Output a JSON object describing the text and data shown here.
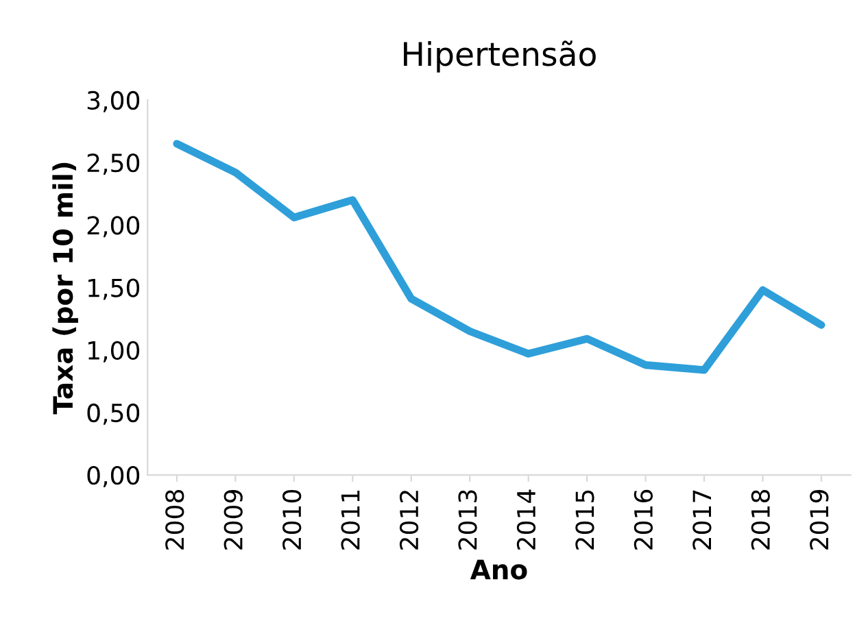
{
  "chart_data": {
    "type": "line",
    "title": "Hipertensão",
    "xlabel": "Ano",
    "ylabel": "Taxa (por 10 mil)",
    "categories": [
      "2008",
      "2009",
      "2010",
      "2011",
      "2012",
      "2013",
      "2014",
      "2015",
      "2016",
      "2017",
      "2018",
      "2019"
    ],
    "series": [
      {
        "color": "#2e9fd9",
        "values": [
          2.65,
          2.42,
          2.06,
          2.2,
          1.41,
          1.15,
          0.97,
          1.09,
          0.88,
          0.84,
          1.48,
          1.2
        ]
      }
    ],
    "ylim": [
      0,
      3
    ],
    "yticks": [
      {
        "value": 0,
        "label": "0,00"
      },
      {
        "value": 0.5,
        "label": "0,50"
      },
      {
        "value": 1,
        "label": "1,00"
      },
      {
        "value": 1.5,
        "label": "1,50"
      },
      {
        "value": 2,
        "label": "2,00"
      },
      {
        "value": 2.5,
        "label": "2,50"
      },
      {
        "value": 3,
        "label": "3,00"
      }
    ],
    "grid": false,
    "marker": "none",
    "line_style": "solid"
  }
}
